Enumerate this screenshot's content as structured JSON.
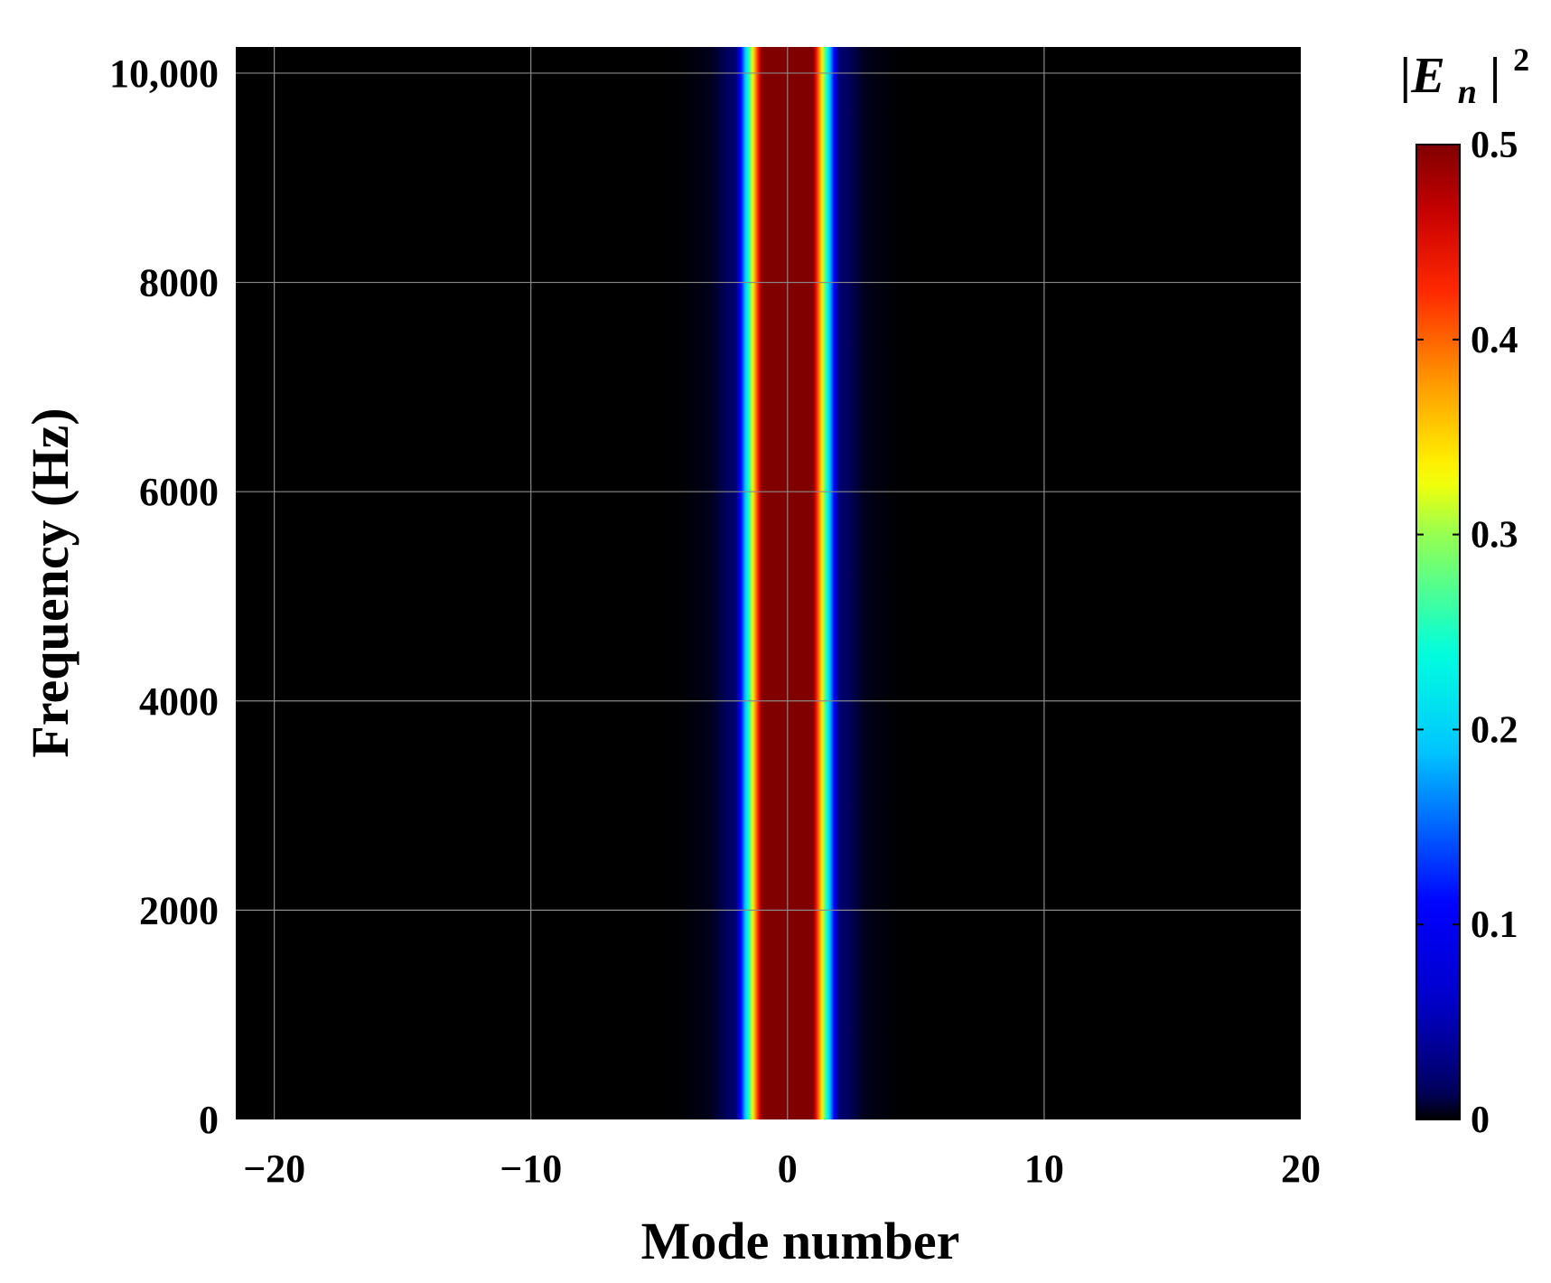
{
  "chart_data": {
    "type": "heatmap",
    "xlabel": "Mode number",
    "ylabel": "Frequency (Hz)",
    "xlim": [
      -21.5,
      20
    ],
    "ylim": [
      0,
      10250
    ],
    "x_ticks": [
      {
        "value": -20,
        "label": "−20"
      },
      {
        "value": -10,
        "label": "−10"
      },
      {
        "value": 0,
        "label": "0"
      },
      {
        "value": 10,
        "label": "10"
      },
      {
        "value": 20,
        "label": "20"
      }
    ],
    "y_ticks": [
      {
        "value": 0,
        "label": "0"
      },
      {
        "value": 2000,
        "label": "2000"
      },
      {
        "value": 4000,
        "label": "4000"
      },
      {
        "value": 6000,
        "label": "6000"
      },
      {
        "value": 8000,
        "label": "8000"
      },
      {
        "value": 10000,
        "label": "10,000"
      }
    ],
    "grid": true,
    "colormap": "jet",
    "z_label_base": "|E",
    "z_label_sub": "n",
    "z_label_tail": "|",
    "z_label_sup": "2",
    "colorbar_range": [
      0,
      0.5
    ],
    "colorbar_ticks": [
      {
        "value": 0,
        "label": "0"
      },
      {
        "value": 0.1,
        "label": "0.1"
      },
      {
        "value": 0.2,
        "label": "0.2"
      },
      {
        "value": 0.3,
        "label": "0.3"
      },
      {
        "value": 0.4,
        "label": "0.4"
      },
      {
        "value": 0.5,
        "label": "0.5"
      }
    ],
    "modes": [
      -4,
      -3,
      -2,
      -1,
      0,
      1,
      2,
      3,
      4
    ],
    "intensity": [
      0.001,
      0.004,
      0.02,
      0.5,
      0.5,
      0.5,
      0.02,
      0.004,
      0.001
    ],
    "frequency_independent": true
  }
}
